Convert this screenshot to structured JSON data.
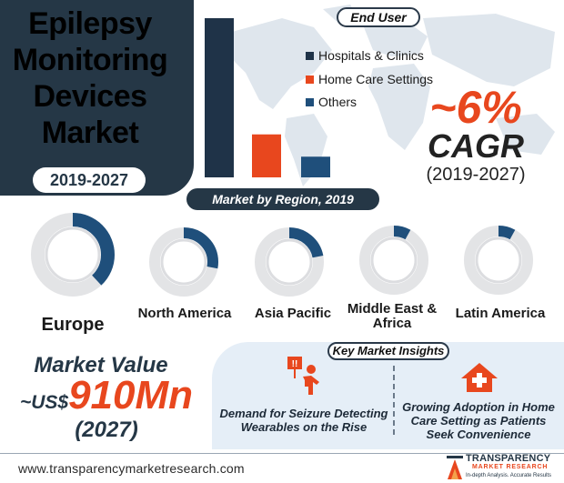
{
  "title": {
    "lines": [
      "Epilepsy",
      "Monitoring",
      "Devices",
      "Market"
    ],
    "years": "2019-2027"
  },
  "end_user": {
    "header": "End User",
    "legend": [
      "Hospitals & Clinics",
      "Home Care Settings",
      "Others"
    ]
  },
  "cagr": {
    "value": "~6%",
    "label": "CAGR",
    "period": "(2019-2027)"
  },
  "region": {
    "header": "Market by Region, 2019",
    "labels": [
      "Europe",
      "North America",
      "Asia Pacific",
      "Middle East & Africa",
      "Latin America"
    ]
  },
  "market_value": {
    "label": "Market Value",
    "prefix": "~US$",
    "amount": "910Mn",
    "year": "(2027)"
  },
  "insights": {
    "header": "Key Market Insights",
    "icon_badge": "!!",
    "item1": "Demand for Seizure Detecting Wearables on the Rise",
    "item2": "Growing Adoption in Home Care Setting as Patients Seek Convenience"
  },
  "footer": {
    "website": "www.transparencymarketresearch.com",
    "brand_name": "TRANSPARENCY",
    "brand_sub": "MARKET RESEARCH",
    "brand_tag": "In-depth Analysis. Accurate Results"
  },
  "colors": {
    "navy": "#253746",
    "dark_bar": "#1f3348",
    "orange": "#e8471e",
    "blue": "#1f4f7b",
    "ring_bg": "#e3e4e6"
  },
  "chart_data": [
    {
      "type": "bar",
      "title": "End User",
      "categories": [
        "Hospitals & Clinics",
        "Home Care Settings",
        "Others"
      ],
      "values": [
        100,
        27,
        13
      ],
      "unit": "relative share (illustrative)",
      "colors": [
        "#1f3348",
        "#e8471e",
        "#1f4f7b"
      ],
      "ylim": [
        0,
        100
      ]
    },
    {
      "type": "pie",
      "title": "Market by Region, 2019",
      "categories": [
        "Europe",
        "North America",
        "Asia Pacific",
        "Middle East & Africa",
        "Latin America"
      ],
      "values": [
        38,
        28,
        22,
        8,
        8
      ],
      "unit": "share of ring (%)",
      "style": "individual donut gauges"
    }
  ]
}
